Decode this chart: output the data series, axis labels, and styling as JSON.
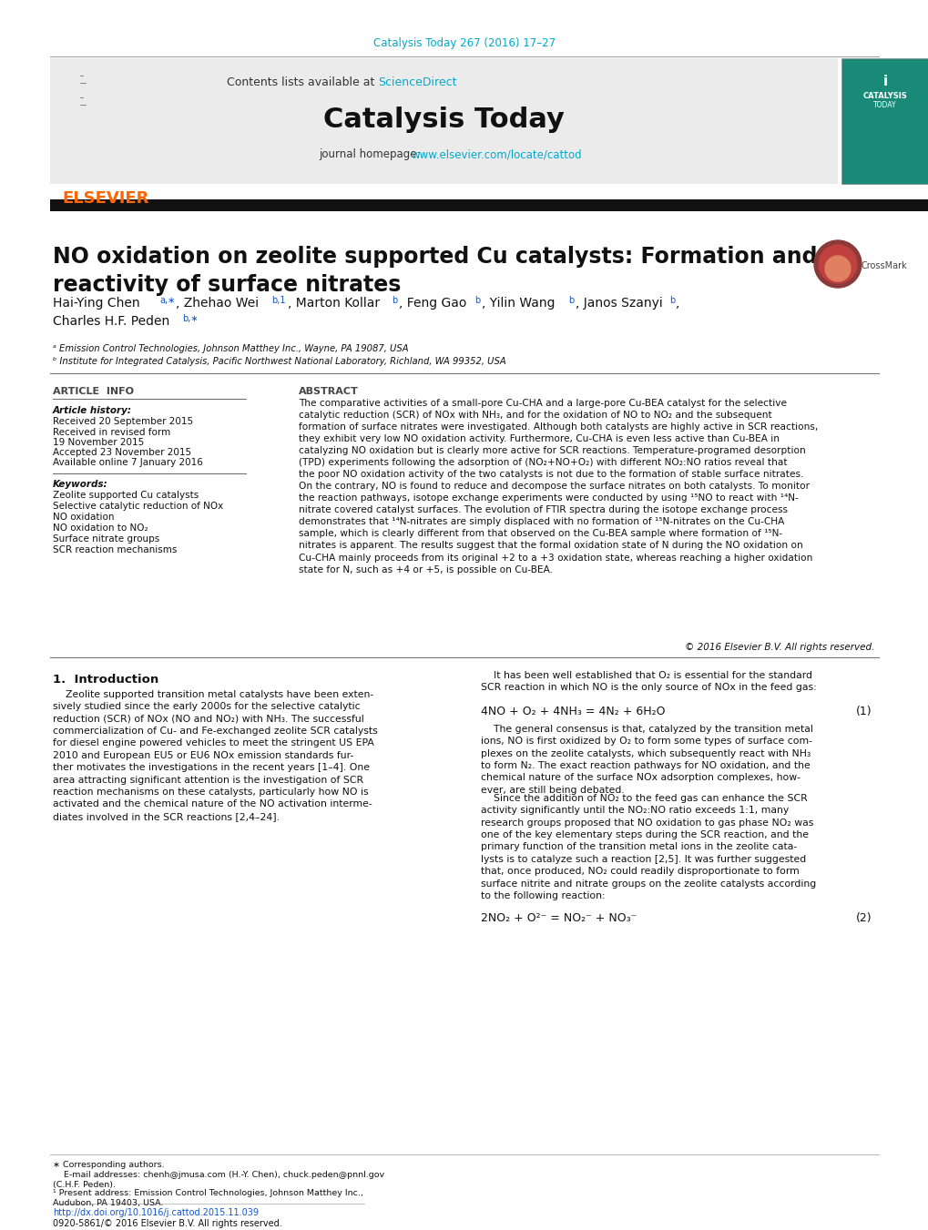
{
  "page_bg": "#ffffff",
  "journal_ref": "Catalysis Today 267 (2016) 17–27",
  "journal_ref_color": "#00AACC",
  "header_text1": "Contents lists available at ",
  "header_sciencedirect": "ScienceDirect",
  "header_sciencedirect_color": "#00AACC",
  "journal_name": "Catalysis Today",
  "journal_homepage_label": "journal homepage: ",
  "journal_url": "www.elsevier.com/locate/cattod",
  "journal_url_color": "#00AACC",
  "elsevier_color": "#FF6600",
  "title": "NO oxidation on zeolite supported Cu catalysts: Formation and\nreactivity of surface nitrates",
  "affil_a": "ᵃ Emission Control Technologies, Johnson Matthey Inc., Wayne, PA 19087, USA",
  "affil_b": "ᵇ Institute for Integrated Catalysis, Pacific Northwest National Laboratory, Richland, WA 99352, USA",
  "article_info_header": "ARTICLE  INFO",
  "abstract_header": "ABSTRACT",
  "article_history_label": "Article history:",
  "received1": "Received 20 September 2015",
  "received2": "Received in revised form",
  "received3": "19 November 2015",
  "accepted": "Accepted 23 November 2015",
  "available": "Available online 7 January 2016",
  "keywords_label": "Keywords:",
  "kw1": "Zeolite supported Cu catalysts",
  "kw2": "Selective catalytic reduction of NOx",
  "kw3": "NO oxidation",
  "kw4": "NO oxidation to NO₂",
  "kw5": "Surface nitrate groups",
  "kw6": "SCR reaction mechanisms",
  "abstract_text": "The comparative activities of a small-pore Cu-CHA and a large-pore Cu-BEA catalyst for the selective\ncatalytic reduction (SCR) of NOx with NH₃, and for the oxidation of NO to NO₂ and the subsequent\nformation of surface nitrates were investigated. Although both catalysts are highly active in SCR reactions,\nthey exhibit very low NO oxidation activity. Furthermore, Cu-CHA is even less active than Cu-BEA in\ncatalyzing NO oxidation but is clearly more active for SCR reactions. Temperature-programed desorption\n(TPD) experiments following the adsorption of (NO₂+NO+O₂) with different NO₂:NO ratios reveal that\nthe poor NO oxidation activity of the two catalysts is not due to the formation of stable surface nitrates.\nOn the contrary, NO is found to reduce and decompose the surface nitrates on both catalysts. To monitor\nthe reaction pathways, isotope exchange experiments were conducted by using ¹⁵NO to react with ¹⁴N-\nnitrate covered catalyst surfaces. The evolution of FTIR spectra during the isotope exchange process\ndemonstrates that ¹⁴N-nitrates are simply displaced with no formation of ¹⁵N-nitrates on the Cu-CHA\nsample, which is clearly different from that observed on the Cu-BEA sample where formation of ¹⁵N-\nnitrates is apparent. The results suggest that the formal oxidation state of N during the NO oxidation on\nCu-CHA mainly proceeds from its original +2 to a +3 oxidation state, whereas reaching a higher oxidation\nstate for N, such as +4 or +5, is possible on Cu-BEA.",
  "copyright": "© 2016 Elsevier B.V. All rights reserved.",
  "intro_header": "1.  Introduction",
  "intro_text1": "    Zeolite supported transition metal catalysts have been exten-\nsively studied since the early 2000s for the selective catalytic\nreduction (SCR) of NOx (NO and NO₂) with NH₃. The successful\ncommercialization of Cu- and Fe-exchanged zeolite SCR catalysts\nfor diesel engine powered vehicles to meet the stringent US EPA\n2010 and European EU5 or EU6 NOx emission standards fur-\nther motivates the investigations in the recent years [1–4]. One\narea attracting significant attention is the investigation of SCR\nreaction mechanisms on these catalysts, particularly how NO is\nactivated and the chemical nature of the NO activation interme-\ndiates involved in the SCR reactions [2,4–24].",
  "intro_text2": "    It has been well established that O₂ is essential for the standard\nSCR reaction in which NO is the only source of NOx in the feed gas:",
  "equation1": "4NO + O₂ + 4NH₃ = 4N₂ + 6H₂O",
  "equation1_num": "(1)",
  "intro_text3": "    The general consensus is that, catalyzed by the transition metal\nions, NO is first oxidized by O₂ to form some types of surface com-\nplexes on the zeolite catalysts, which subsequently react with NH₃\nto form N₂. The exact reaction pathways for NO oxidation, and the\nchemical nature of the surface NOx adsorption complexes, how-\never, are still being debated.",
  "intro_text4": "    Since the addition of NO₂ to the feed gas can enhance the SCR\nactivity significantly until the NO₂:NO ratio exceeds 1:1, many\nresearch groups proposed that NO oxidation to gas phase NO₂ was\none of the key elementary steps during the SCR reaction, and the\nprimary function of the transition metal ions in the zeolite cata-\nlysts is to catalyze such a reaction [2,5]. It was further suggested\nthat, once produced, NO₂ could readily disproportionate to form\nsurface nitrite and nitrate groups on the zeolite catalysts according\nto the following reaction:",
  "equation2": "2NO₂ + O²⁻ = NO₂⁻ + NO₃⁻",
  "equation2_num": "(2)",
  "footer_note1": "∗ Corresponding authors.",
  "footer_note2": "    E-mail addresses: chenh@jmusa.com (H.-Y. Chen), chuck.peden@pnnl.gov\n(C.H.F. Peden).",
  "footer_note3": "¹ Present address: Emission Control Technologies, Johnson Matthey Inc.,\nAudubon, PA 19403, USA.",
  "footer_doi": "http://dx.doi.org/10.1016/j.cattod.2015.11.039",
  "footer_issn": "0920-5861/© 2016 Elsevier B.V. All rights reserved."
}
